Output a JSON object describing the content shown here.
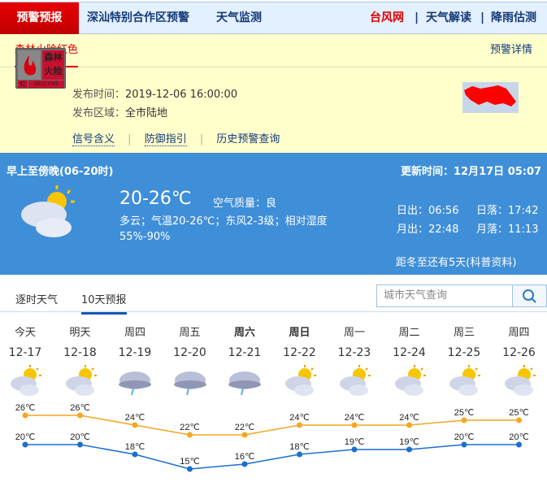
{
  "nav": {
    "active": "预警预报",
    "items": [
      "深汕特别合作区预警",
      "天气监测"
    ],
    "right": [
      "台风网",
      "天气解读",
      "降雨估测"
    ]
  },
  "warning": {
    "tab": "森林火险红色",
    "detail": "预警详情",
    "badge": {
      "cn_top": "森林",
      "cn_bottom": "火险",
      "level": "红",
      "en": "WILD FIRE"
    },
    "time_label": "发布时间：",
    "time": "2019-12-06 16:00:00",
    "area_label": "发布区域：",
    "area": "全市陆地",
    "links": [
      "信号含义",
      "防御指引",
      "历史预警查询"
    ]
  },
  "today": {
    "period": "早上至傍晚(06-20时)",
    "update": "更新时间：12月17日 05:07",
    "temp": "20-26℃",
    "aqi_label": "空气质量：",
    "aqi": "良",
    "desc": "多云；气温20-26℃；东风2-3级；相对湿度55%-90%",
    "sunrise": "日出：06:56",
    "sunset": "日落：17:42",
    "moonrise": "月出：22:48",
    "moonset": "月落：11:13",
    "solar_term": "距冬至还有5天(科普资料)",
    "icon": "partly-cloudy-icon"
  },
  "tabs": [
    "逐时天气",
    "10天预报"
  ],
  "search": {
    "placeholder": "城市天气查询"
  },
  "colors": {
    "high": "#f5a623",
    "low": "#1a6fd1",
    "blue_bg": "#3f8ed8",
    "nav_red": "#d40000"
  },
  "chart_data": {
    "type": "line",
    "categories": [
      "12-17",
      "12-18",
      "12-19",
      "12-20",
      "12-21",
      "12-22",
      "12-23",
      "12-24",
      "12-25",
      "12-26"
    ],
    "weekdays": [
      "今天",
      "明天",
      "周四",
      "周五",
      "周六",
      "周日",
      "周一",
      "周二",
      "周三",
      "周四"
    ],
    "icons": [
      "partly-cloudy",
      "partly-cloudy",
      "rain",
      "rain",
      "rain",
      "partly-cloudy",
      "partly-cloudy",
      "partly-cloudy",
      "partly-cloudy",
      "partly-cloudy"
    ],
    "unit": "℃",
    "series": [
      {
        "values": [
          26,
          26,
          24,
          22,
          22,
          24,
          24,
          24,
          25,
          25
        ]
      },
      {
        "values": [
          20,
          20,
          18,
          15,
          16,
          18,
          19,
          19,
          20,
          20
        ]
      }
    ]
  }
}
